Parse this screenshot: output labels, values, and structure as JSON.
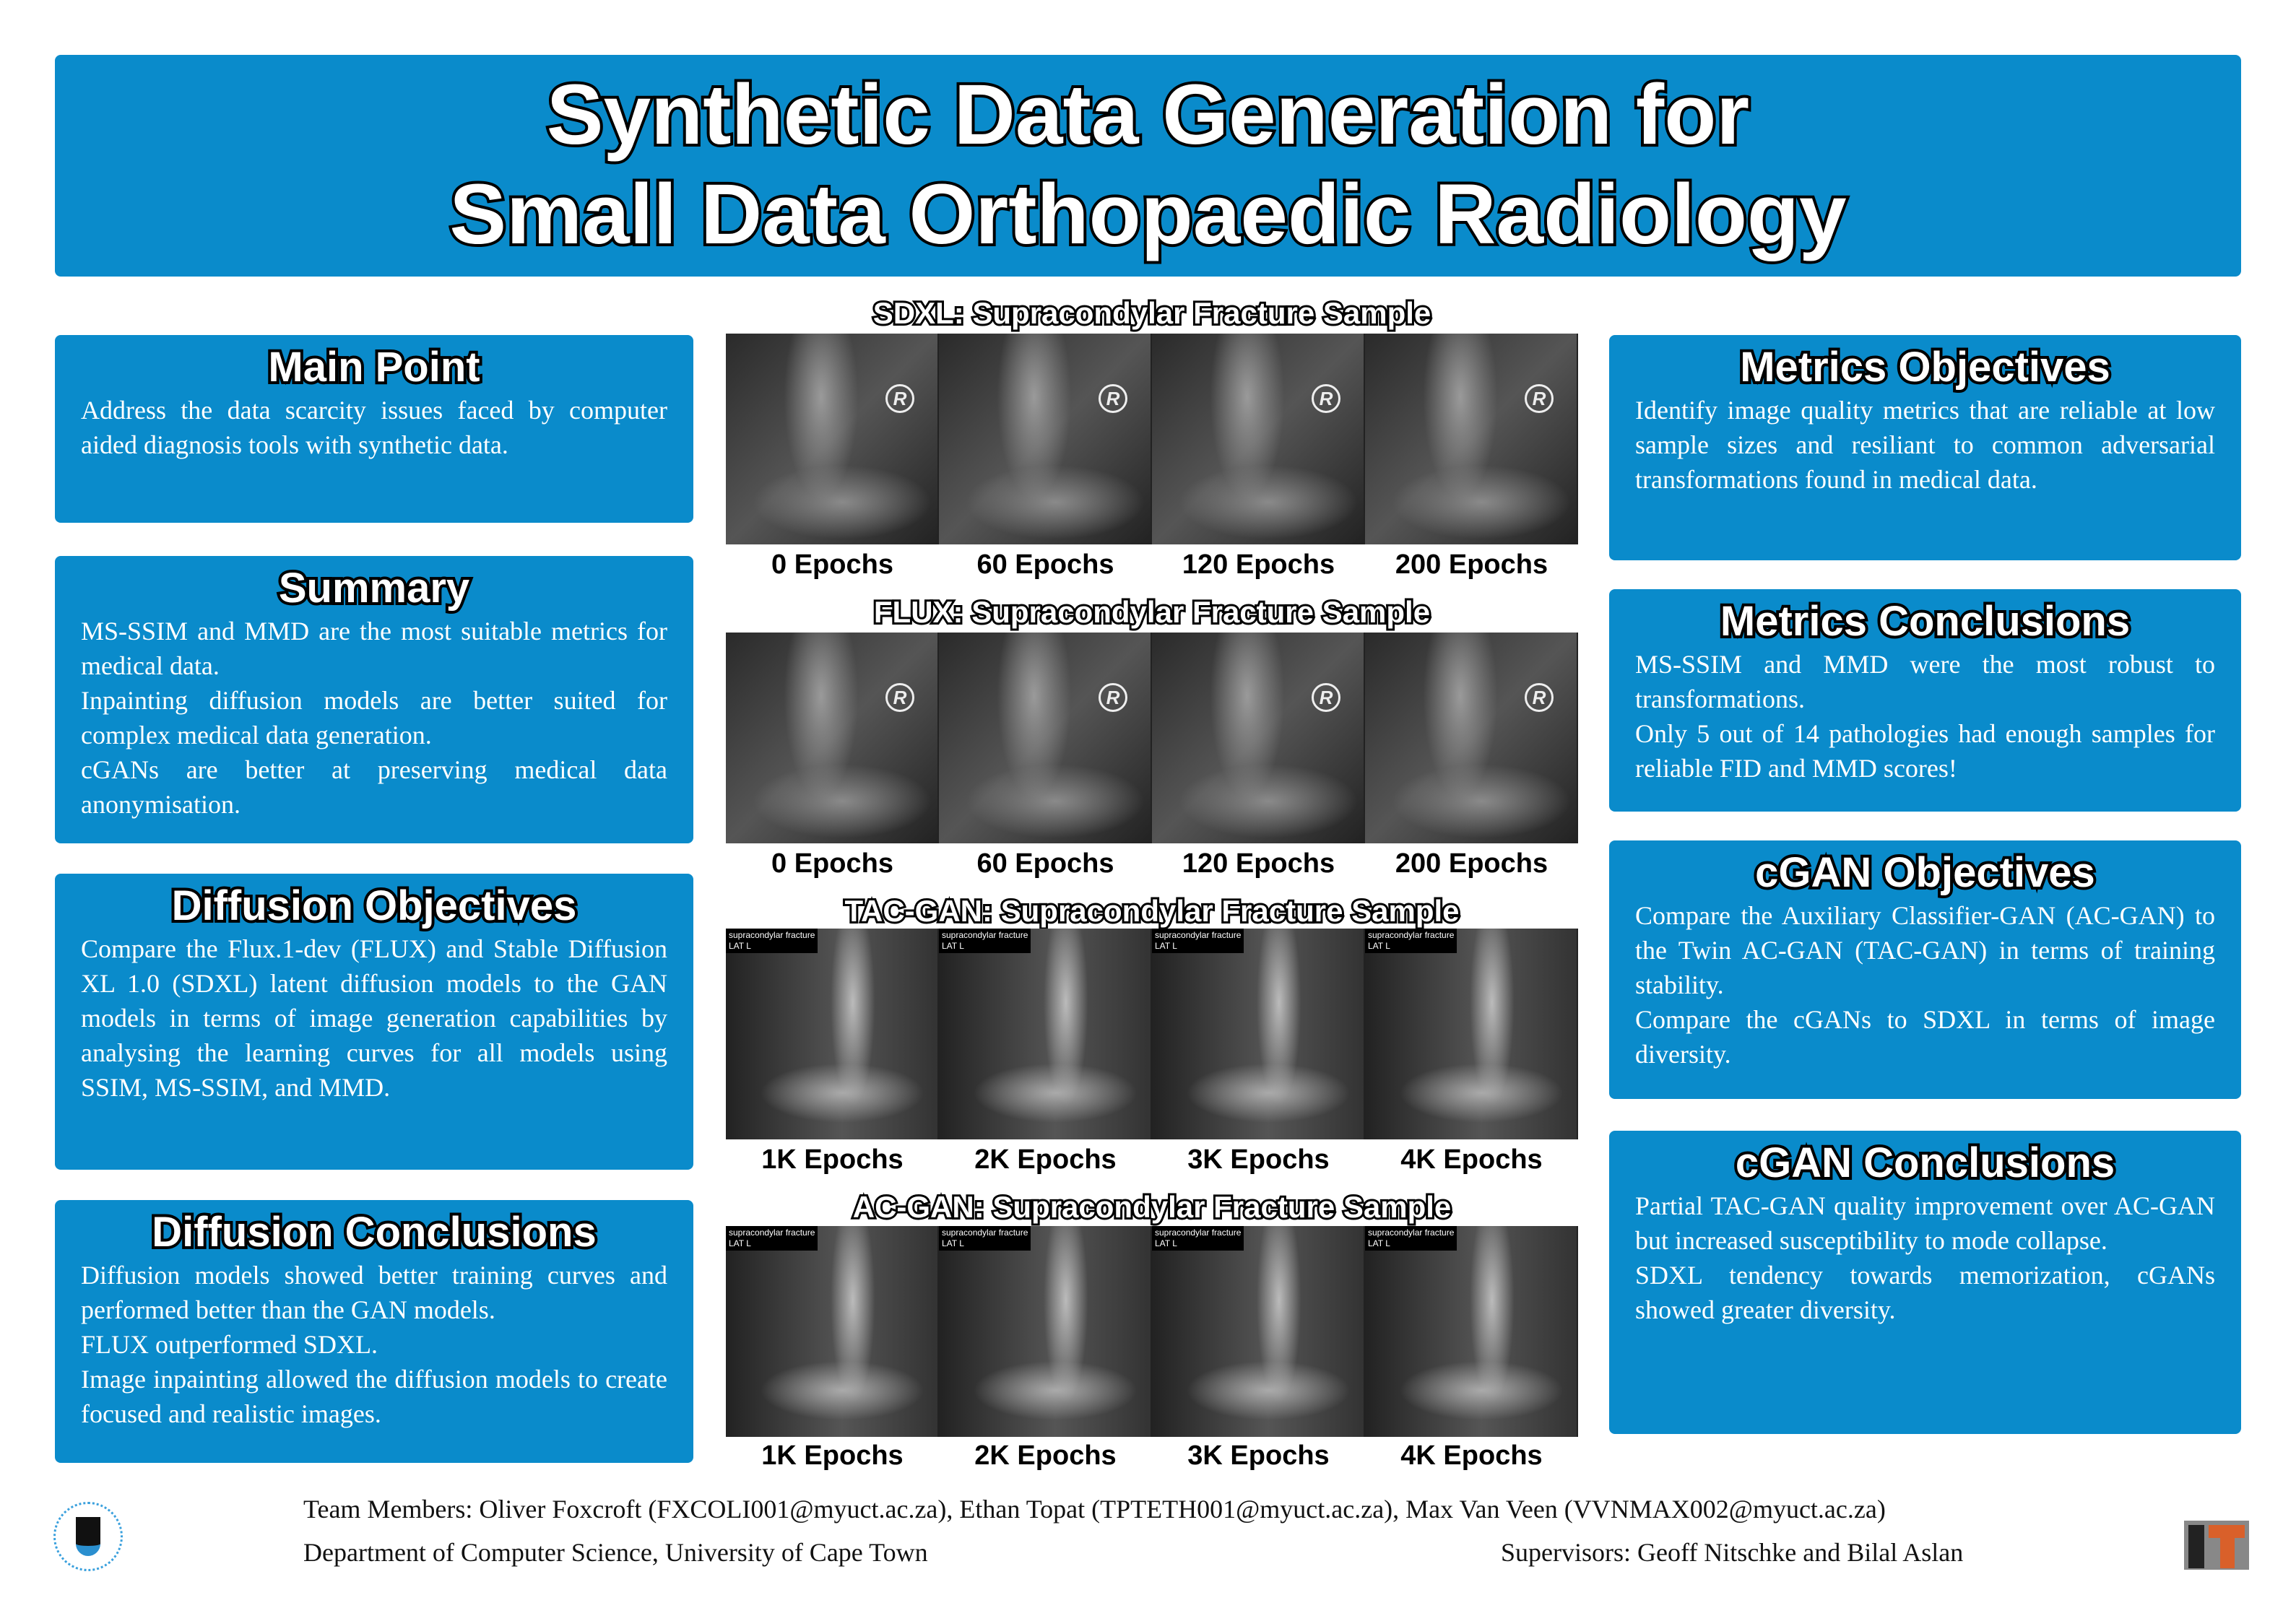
{
  "title": {
    "line1": "Synthetic Data Generation for",
    "line2": "Small Data Orthopaedic Radiology"
  },
  "left": [
    {
      "title": "Main Point",
      "body": [
        "Address the data scarcity issues faced by computer aided diagnosis tools with synthetic data."
      ]
    },
    {
      "title": "Summary",
      "body": [
        "MS-SSIM and MMD are the most suitable metrics for medical data.",
        "Inpainting diffusion models are better suited for complex medical data generation.",
        "cGANs are better at preserving medical data anonymisation."
      ]
    },
    {
      "title": "Diffusion Objectives",
      "body": [
        "Compare the Flux.1-dev (FLUX) and Stable Diffusion XL 1.0 (SDXL) latent diffusion models to the GAN models in terms of image generation capabilities by analysing the learning curves for all models using SSIM, MS-SSIM, and MMD."
      ]
    },
    {
      "title": "Diffusion Conclusions",
      "body": [
        "Diffusion models showed better training curves and performed better than the GAN models.",
        "FLUX outperformed SDXL.",
        "Image inpainting allowed the diffusion models to create focused and realistic images."
      ]
    }
  ],
  "right": [
    {
      "title": "Metrics Objectives",
      "body": [
        "Identify image quality metrics that are reliable at low sample sizes and resiliant to common adversarial transformations found in medical data."
      ]
    },
    {
      "title": "Metrics Conclusions",
      "body": [
        "MS-SSIM and MMD were the most robust to transformations.",
        "Only 5 out of 14 pathologies had enough samples for reliable FID and MMD scores!"
      ]
    },
    {
      "title": "cGAN Objectives",
      "body": [
        "Compare the Auxiliary Classifier-GAN (AC-GAN) to the Twin AC-GAN (TAC-GAN) in terms of training stability.",
        "Compare the cGANs to SDXL in terms of image diversity."
      ]
    },
    {
      "title": "cGAN Conclusions",
      "body": [
        "Partial TAC-GAN quality improvement over AC-GAN but increased susceptibility to mode collapse.",
        "SDXL tendency towards memorization, cGANs showed greater diversity."
      ]
    }
  ],
  "samples": [
    {
      "title": "SDXL: Supracondylar  Fracture Sample",
      "labels": [
        "0 Epochs",
        "60 Epochs",
        "120 Epochs",
        "200 Epochs"
      ],
      "marker": "R"
    },
    {
      "title": "FLUX: Supracondylar  Fracture Sample",
      "labels": [
        "0 Epochs",
        "60 Epochs",
        "120 Epochs",
        "200 Epochs"
      ],
      "marker": "R"
    },
    {
      "title": "TAC-GAN: Supracondylar Fracture Sample",
      "labels": [
        "1K Epochs",
        "2K Epochs",
        "3K Epochs",
        "4K Epochs"
      ],
      "tag1": "supracondylar fracture",
      "tag2": "LAT L"
    },
    {
      "title": "AC-GAN: Supracondylar Fracture Sample",
      "labels": [
        "1K Epochs",
        "2K Epochs",
        "3K Epochs",
        "4K Epochs"
      ],
      "tag1": "supracondylar fracture",
      "tag2": "LAT L"
    }
  ],
  "footer": {
    "team": "Team Members: Oliver Foxcroft (FXCOLI001@myuct.ac.za), Ethan Topat (TPTETH001@myuct.ac.za), Max Van Veen (VVNMAX002@myuct.ac.za)",
    "dept": "Department of Computer Science, University of Cape Town",
    "supervisors": "Supervisors: Geoff Nitschke and Bilal Aslan"
  },
  "colors": {
    "panel": "#0a8bcb",
    "logo_orange": "#d9602a"
  }
}
